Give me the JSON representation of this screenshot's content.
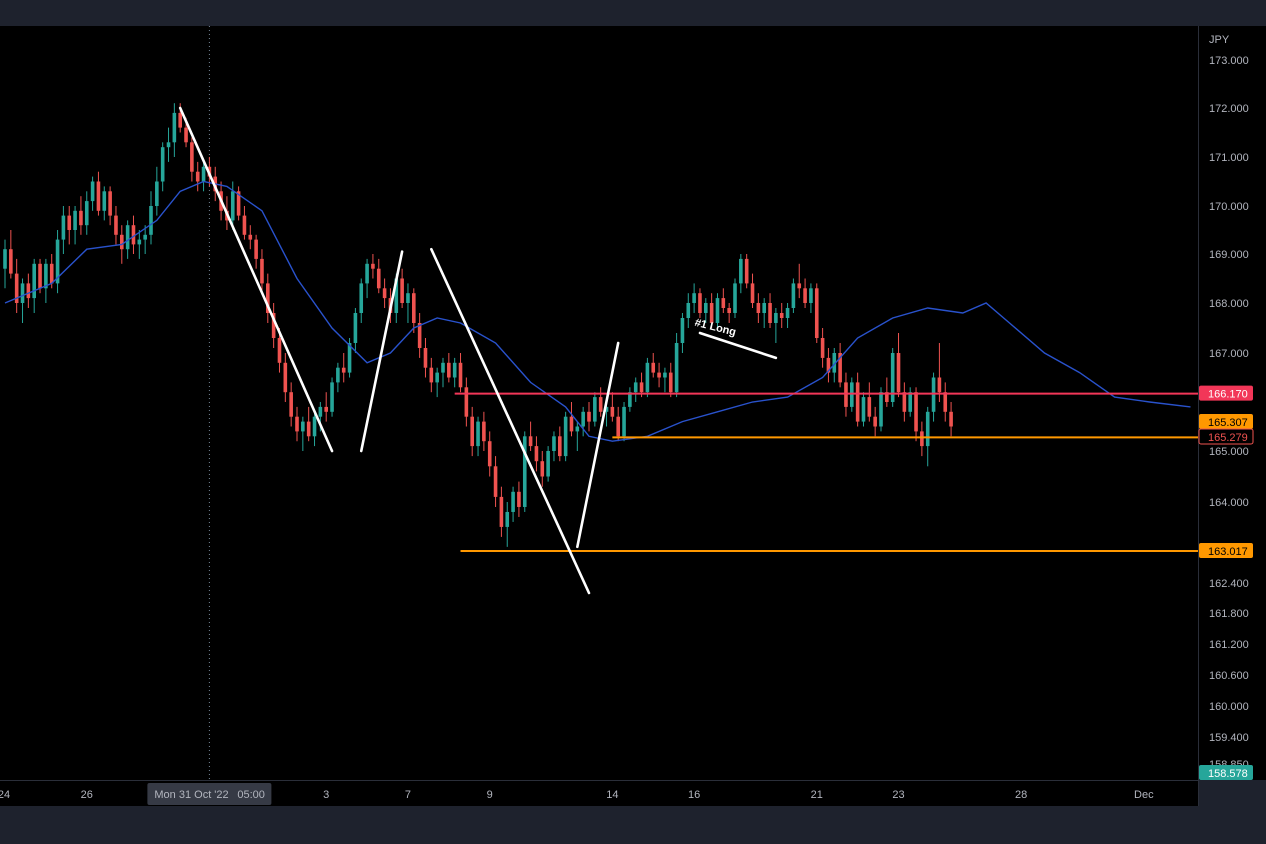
{
  "chart_data": {
    "type": "candlestick",
    "currency_label": "JPY",
    "colors": {
      "background": "#000000",
      "frame": "#1e222d",
      "up_candle": "#26a69a",
      "down_candle": "#ef5350",
      "moving_average": "#2952cc",
      "trend_lines": "#ffffff",
      "resistance_line": "#f23658",
      "support_line": "#ff9800",
      "axis_text": "#b2b5be",
      "crosshair": "#758696"
    },
    "y_ticks": [
      "173.000",
      "172.000",
      "171.000",
      "170.000",
      "169.000",
      "168.000",
      "167.000",
      "165.000",
      "164.000",
      "162.400",
      "161.800",
      "161.200",
      "160.600",
      "160.000",
      "159.400",
      "158.850"
    ],
    "x_ticks": [
      {
        "label": "24",
        "index": 0
      },
      {
        "label": "26",
        "index": 14
      },
      {
        "label": "3",
        "index": 55
      },
      {
        "label": "7",
        "index": 69
      },
      {
        "label": "9",
        "index": 83
      },
      {
        "label": "14",
        "index": 104
      },
      {
        "label": "16",
        "index": 118
      },
      {
        "label": "21",
        "index": 139
      },
      {
        "label": "23",
        "index": 153
      },
      {
        "label": "28",
        "index": 174
      },
      {
        "label": "Dec",
        "index": 195
      }
    ],
    "crosshair": {
      "date_label": "Mon 31 Oct '22",
      "time_label": "05:00",
      "index": 35
    },
    "price_tags": [
      {
        "label": "166.170",
        "value": 166.17,
        "kind": "resistance"
      },
      {
        "label": "165.307",
        "value": 165.307,
        "kind": "support"
      },
      {
        "label": "165.279",
        "value": 165.279,
        "kind": "last"
      },
      {
        "label": "163.017",
        "value": 163.017,
        "kind": "support"
      },
      {
        "label": "158.578",
        "value": 158.578,
        "kind": "bottom"
      }
    ],
    "horizontal_lines": [
      {
        "value": 166.17,
        "color": "#f23658",
        "from_index": 77
      },
      {
        "value": 165.279,
        "color": "#ff9800",
        "from_index": 104
      },
      {
        "value": 163.017,
        "color": "#ff9800",
        "from_index": 78
      }
    ],
    "trend_lines": [
      {
        "x1": 30,
        "y1": 172.0,
        "x2": 56,
        "y2": 165.0
      },
      {
        "x1": 61,
        "y1": 165.0,
        "x2": 68,
        "y2": 169.05
      },
      {
        "x1": 73,
        "y1": 169.1,
        "x2": 100,
        "y2": 162.2
      },
      {
        "x1": 98,
        "y1": 163.1,
        "x2": 105,
        "y2": 167.2
      },
      {
        "x1": 119,
        "y1": 167.4,
        "x2": 132,
        "y2": 166.9
      }
    ],
    "annotation": {
      "text": "#1 Long",
      "index": 118,
      "value": 167.55
    },
    "candles_ohlc": [
      [
        168.7,
        169.3,
        168.3,
        169.1
      ],
      [
        169.1,
        169.5,
        168.5,
        168.6
      ],
      [
        168.6,
        168.9,
        167.8,
        168.0
      ],
      [
        168.0,
        168.5,
        167.6,
        168.4
      ],
      [
        168.4,
        168.6,
        167.9,
        168.1
      ],
      [
        168.1,
        168.9,
        167.8,
        168.8
      ],
      [
        168.8,
        168.9,
        168.2,
        168.3
      ],
      [
        168.3,
        168.9,
        168.0,
        168.8
      ],
      [
        168.8,
        169.0,
        168.3,
        168.4
      ],
      [
        168.4,
        169.5,
        168.2,
        169.3
      ],
      [
        169.3,
        170.0,
        169.0,
        169.8
      ],
      [
        169.8,
        170.0,
        169.2,
        169.5
      ],
      [
        169.5,
        170.0,
        169.2,
        169.9
      ],
      [
        169.9,
        170.2,
        169.4,
        169.6
      ],
      [
        169.6,
        170.3,
        169.4,
        170.1
      ],
      [
        170.1,
        170.6,
        169.9,
        170.5
      ],
      [
        170.5,
        170.7,
        169.8,
        169.9
      ],
      [
        169.9,
        170.4,
        169.7,
        170.3
      ],
      [
        170.3,
        170.4,
        169.6,
        169.8
      ],
      [
        169.8,
        170.0,
        169.2,
        169.4
      ],
      [
        169.4,
        169.6,
        168.8,
        169.1
      ],
      [
        169.1,
        169.7,
        168.9,
        169.6
      ],
      [
        169.6,
        169.8,
        169.0,
        169.2
      ],
      [
        169.2,
        169.5,
        168.9,
        169.3
      ],
      [
        169.3,
        169.6,
        169.0,
        169.4
      ],
      [
        169.4,
        170.3,
        169.2,
        170.0
      ],
      [
        170.0,
        170.8,
        169.8,
        170.5
      ],
      [
        170.5,
        171.3,
        170.3,
        171.2
      ],
      [
        171.2,
        171.6,
        170.9,
        171.3
      ],
      [
        171.3,
        172.1,
        171.0,
        171.9
      ],
      [
        171.9,
        172.1,
        171.5,
        171.6
      ],
      [
        171.6,
        171.8,
        171.2,
        171.3
      ],
      [
        171.3,
        171.4,
        170.5,
        170.7
      ],
      [
        170.7,
        170.9,
        170.3,
        170.5
      ],
      [
        170.5,
        170.9,
        170.3,
        170.8
      ],
      [
        170.8,
        171.0,
        170.4,
        170.6
      ],
      [
        170.6,
        170.8,
        170.1,
        170.3
      ],
      [
        170.3,
        170.5,
        169.7,
        169.9
      ],
      [
        169.9,
        170.2,
        169.5,
        169.7
      ],
      [
        169.7,
        170.5,
        169.5,
        170.3
      ],
      [
        170.3,
        170.4,
        169.7,
        169.8
      ],
      [
        169.8,
        170.0,
        169.3,
        169.4
      ],
      [
        169.4,
        169.6,
        169.1,
        169.3
      ],
      [
        169.3,
        169.4,
        168.7,
        168.9
      ],
      [
        168.9,
        169.1,
        168.2,
        168.4
      ],
      [
        168.4,
        168.6,
        167.6,
        167.8
      ],
      [
        167.8,
        168.0,
        167.1,
        167.3
      ],
      [
        167.3,
        167.5,
        166.6,
        166.8
      ],
      [
        166.8,
        167.0,
        166.0,
        166.2
      ],
      [
        166.2,
        166.4,
        165.5,
        165.7
      ],
      [
        165.7,
        165.9,
        165.2,
        165.4
      ],
      [
        165.4,
        165.7,
        165.0,
        165.6
      ],
      [
        165.6,
        165.9,
        165.2,
        165.3
      ],
      [
        165.3,
        165.8,
        165.1,
        165.7
      ],
      [
        165.7,
        166.0,
        165.4,
        165.9
      ],
      [
        165.9,
        166.2,
        165.6,
        165.8
      ],
      [
        165.8,
        166.5,
        165.7,
        166.4
      ],
      [
        166.4,
        166.8,
        166.2,
        166.7
      ],
      [
        166.7,
        167.0,
        166.4,
        166.6
      ],
      [
        166.6,
        167.3,
        166.5,
        167.2
      ],
      [
        167.2,
        167.9,
        167.0,
        167.8
      ],
      [
        167.8,
        168.5,
        167.6,
        168.4
      ],
      [
        168.4,
        168.9,
        168.1,
        168.8
      ],
      [
        168.8,
        169.0,
        168.5,
        168.7
      ],
      [
        168.7,
        168.9,
        168.2,
        168.3
      ],
      [
        168.3,
        168.5,
        167.9,
        168.1
      ],
      [
        168.1,
        168.3,
        167.6,
        167.8
      ],
      [
        167.8,
        168.6,
        167.6,
        168.5
      ],
      [
        168.5,
        168.7,
        167.9,
        168.0
      ],
      [
        168.0,
        168.4,
        167.6,
        168.2
      ],
      [
        168.2,
        168.3,
        167.4,
        167.6
      ],
      [
        167.6,
        167.8,
        166.9,
        167.1
      ],
      [
        167.1,
        167.3,
        166.5,
        166.7
      ],
      [
        166.7,
        166.9,
        166.2,
        166.4
      ],
      [
        166.4,
        166.7,
        166.1,
        166.6
      ],
      [
        166.6,
        166.9,
        166.3,
        166.8
      ],
      [
        166.8,
        167.0,
        166.4,
        166.5
      ],
      [
        166.5,
        166.9,
        166.3,
        166.8
      ],
      [
        166.8,
        167.0,
        166.2,
        166.3
      ],
      [
        166.3,
        166.5,
        165.5,
        165.7
      ],
      [
        165.7,
        165.9,
        164.9,
        165.1
      ],
      [
        165.1,
        165.7,
        164.9,
        165.6
      ],
      [
        165.6,
        165.8,
        165.0,
        165.2
      ],
      [
        165.2,
        165.4,
        164.5,
        164.7
      ],
      [
        164.7,
        164.9,
        163.9,
        164.1
      ],
      [
        164.1,
        164.3,
        163.3,
        163.5
      ],
      [
        163.5,
        164.0,
        163.1,
        163.8
      ],
      [
        163.8,
        164.3,
        163.6,
        164.2
      ],
      [
        164.2,
        164.4,
        163.7,
        163.9
      ],
      [
        163.9,
        165.4,
        163.8,
        165.3
      ],
      [
        165.3,
        165.6,
        165.0,
        165.1
      ],
      [
        165.1,
        165.3,
        164.6,
        164.8
      ],
      [
        164.8,
        165.0,
        164.3,
        164.5
      ],
      [
        164.5,
        165.1,
        164.4,
        165.0
      ],
      [
        165.0,
        165.4,
        164.8,
        165.3
      ],
      [
        165.3,
        165.5,
        164.8,
        164.9
      ],
      [
        164.9,
        165.8,
        164.8,
        165.7
      ],
      [
        165.7,
        166.0,
        165.3,
        165.4
      ],
      [
        165.4,
        165.6,
        165.0,
        165.5
      ],
      [
        165.5,
        165.9,
        165.3,
        165.8
      ],
      [
        165.8,
        166.0,
        165.4,
        165.6
      ],
      [
        165.6,
        166.2,
        165.5,
        166.1
      ],
      [
        166.1,
        166.3,
        165.7,
        165.8
      ],
      [
        165.8,
        166.0,
        165.5,
        165.9
      ],
      [
        165.9,
        166.2,
        165.6,
        165.7
      ],
      [
        165.7,
        165.9,
        165.2,
        165.3
      ],
      [
        165.3,
        166.0,
        165.2,
        165.9
      ],
      [
        165.9,
        166.3,
        165.8,
        166.2
      ],
      [
        166.2,
        166.5,
        166.0,
        166.4
      ],
      [
        166.4,
        166.6,
        166.1,
        166.2
      ],
      [
        166.2,
        166.9,
        166.1,
        166.8
      ],
      [
        166.8,
        167.0,
        166.5,
        166.6
      ],
      [
        166.6,
        166.8,
        166.3,
        166.5
      ],
      [
        166.5,
        166.7,
        166.2,
        166.6
      ],
      [
        166.6,
        166.8,
        166.1,
        166.2
      ],
      [
        166.2,
        167.4,
        166.1,
        167.2
      ],
      [
        167.2,
        167.8,
        167.0,
        167.7
      ],
      [
        167.7,
        168.2,
        167.5,
        168.0
      ],
      [
        168.0,
        168.4,
        167.8,
        168.2
      ],
      [
        168.2,
        168.3,
        167.7,
        167.8
      ],
      [
        167.8,
        168.1,
        167.6,
        168.0
      ],
      [
        168.0,
        168.2,
        167.5,
        167.6
      ],
      [
        167.6,
        168.2,
        167.5,
        168.1
      ],
      [
        168.1,
        168.3,
        167.8,
        167.9
      ],
      [
        167.9,
        168.0,
        167.6,
        167.8
      ],
      [
        167.8,
        168.5,
        167.7,
        168.4
      ],
      [
        168.4,
        169.0,
        168.2,
        168.9
      ],
      [
        168.9,
        169.0,
        168.3,
        168.4
      ],
      [
        168.4,
        168.6,
        167.9,
        168.0
      ],
      [
        168.0,
        168.2,
        167.6,
        167.8
      ],
      [
        167.8,
        168.1,
        167.5,
        168.0
      ],
      [
        168.0,
        168.2,
        167.5,
        167.6
      ],
      [
        167.6,
        167.9,
        167.2,
        167.8
      ],
      [
        167.8,
        168.0,
        167.5,
        167.7
      ],
      [
        167.7,
        168.0,
        167.5,
        167.9
      ],
      [
        167.9,
        168.5,
        167.8,
        168.4
      ],
      [
        168.4,
        168.8,
        168.1,
        168.3
      ],
      [
        168.3,
        168.5,
        167.9,
        168.0
      ],
      [
        168.0,
        168.4,
        167.8,
        168.3
      ],
      [
        168.3,
        168.4,
        167.2,
        167.3
      ],
      [
        167.3,
        167.5,
        166.7,
        166.9
      ],
      [
        166.9,
        167.1,
        166.4,
        166.6
      ],
      [
        166.6,
        167.1,
        166.4,
        167.0
      ],
      [
        167.0,
        167.2,
        166.3,
        166.4
      ],
      [
        166.4,
        166.6,
        165.7,
        165.9
      ],
      [
        165.9,
        166.5,
        165.8,
        166.4
      ],
      [
        166.4,
        166.6,
        165.5,
        165.6
      ],
      [
        165.6,
        166.2,
        165.5,
        166.1
      ],
      [
        166.1,
        166.4,
        165.6,
        165.7
      ],
      [
        165.7,
        165.9,
        165.3,
        165.5
      ],
      [
        165.5,
        166.3,
        165.4,
        166.2
      ],
      [
        166.2,
        166.5,
        165.9,
        166.0
      ],
      [
        166.0,
        167.1,
        165.9,
        167.0
      ],
      [
        167.0,
        167.4,
        166.1,
        166.2
      ],
      [
        166.2,
        166.4,
        165.6,
        165.8
      ],
      [
        165.8,
        166.3,
        165.7,
        166.2
      ],
      [
        166.2,
        166.3,
        165.2,
        165.4
      ],
      [
        165.4,
        165.6,
        164.9,
        165.1
      ],
      [
        165.1,
        165.9,
        164.7,
        165.8
      ],
      [
        165.8,
        166.6,
        165.6,
        166.5
      ],
      [
        166.5,
        167.2,
        166.0,
        166.2
      ],
      [
        166.2,
        166.4,
        165.6,
        165.8
      ],
      [
        165.8,
        166.0,
        165.3,
        165.5
      ]
    ],
    "ma": [
      [
        0,
        168.0
      ],
      [
        8,
        168.4
      ],
      [
        14,
        169.1
      ],
      [
        20,
        169.2
      ],
      [
        26,
        169.7
      ],
      [
        30,
        170.3
      ],
      [
        34,
        170.5
      ],
      [
        38,
        170.4
      ],
      [
        44,
        169.9
      ],
      [
        50,
        168.5
      ],
      [
        56,
        167.5
      ],
      [
        62,
        166.8
      ],
      [
        66,
        167.0
      ],
      [
        70,
        167.5
      ],
      [
        74,
        167.7
      ],
      [
        78,
        167.6
      ],
      [
        84,
        167.2
      ],
      [
        90,
        166.4
      ],
      [
        96,
        165.9
      ],
      [
        100,
        165.3
      ],
      [
        104,
        165.2
      ],
      [
        110,
        165.3
      ],
      [
        116,
        165.6
      ],
      [
        122,
        165.8
      ],
      [
        128,
        166.0
      ],
      [
        134,
        166.1
      ],
      [
        140,
        166.5
      ],
      [
        146,
        167.3
      ],
      [
        152,
        167.7
      ],
      [
        158,
        167.9
      ],
      [
        164,
        167.8
      ],
      [
        168,
        168.0
      ],
      [
        172,
        167.6
      ],
      [
        178,
        167.0
      ],
      [
        184,
        166.6
      ],
      [
        190,
        166.1
      ],
      [
        196,
        166.0
      ],
      [
        203,
        165.9
      ]
    ]
  }
}
